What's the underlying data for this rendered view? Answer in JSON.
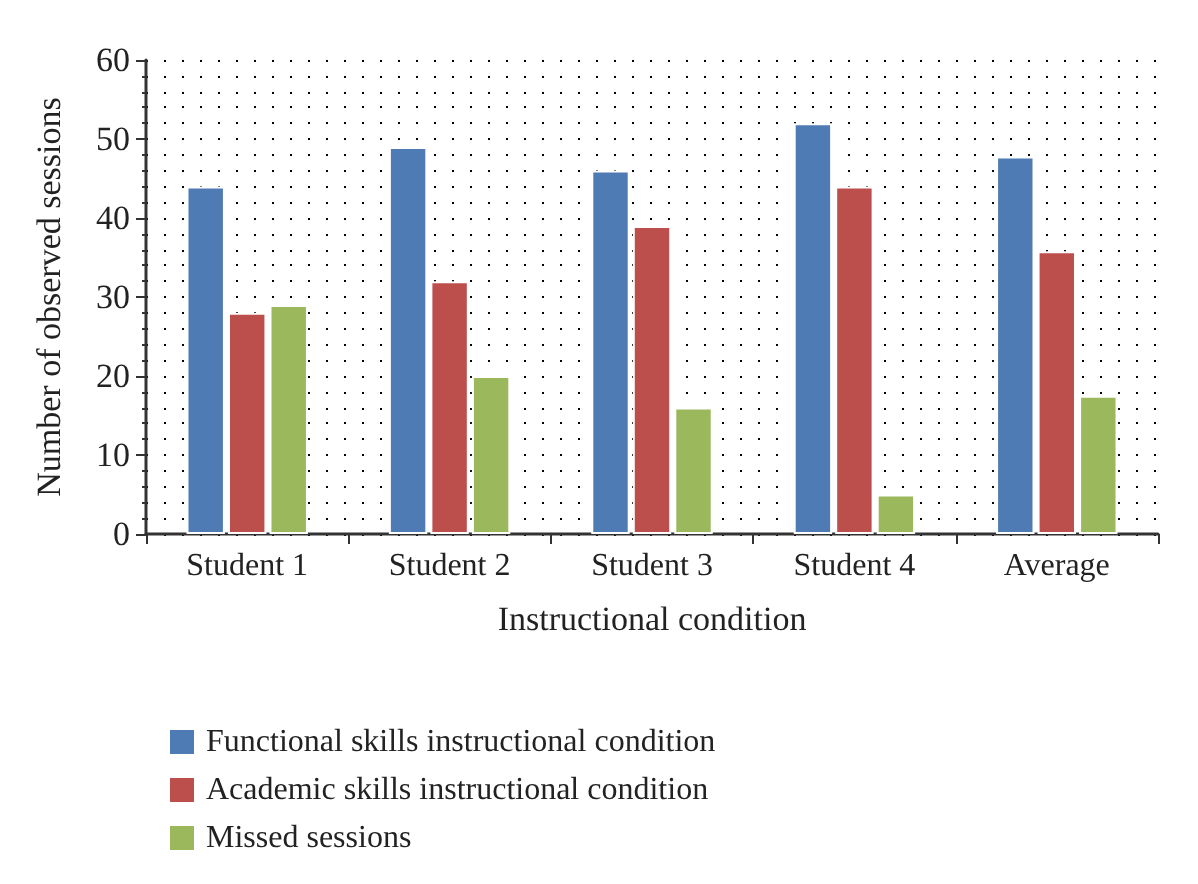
{
  "chart_data": {
    "type": "bar",
    "xlabel": "Instructional condition",
    "ylabel": "Number of observed sessions",
    "categories": [
      "Student 1",
      "Student 2",
      "Student 3",
      "Student 4",
      "Average"
    ],
    "series": [
      {
        "name": "Functional skills instructional condition",
        "color": "#4f7bb5",
        "values": [
          44,
          49,
          46,
          52,
          47.8
        ]
      },
      {
        "name": "Academic skills instructional condition",
        "color": "#bc4f4c",
        "values": [
          28,
          32,
          39,
          44,
          35.8
        ]
      },
      {
        "name": "Missed sessions",
        "color": "#9bb85c",
        "values": [
          29,
          20,
          16,
          5,
          17.5
        ]
      }
    ],
    "ylim": [
      0,
      60
    ],
    "yticks": [
      0,
      10,
      20,
      30,
      40,
      50,
      60
    ],
    "grid": true,
    "legend": "bottom"
  }
}
